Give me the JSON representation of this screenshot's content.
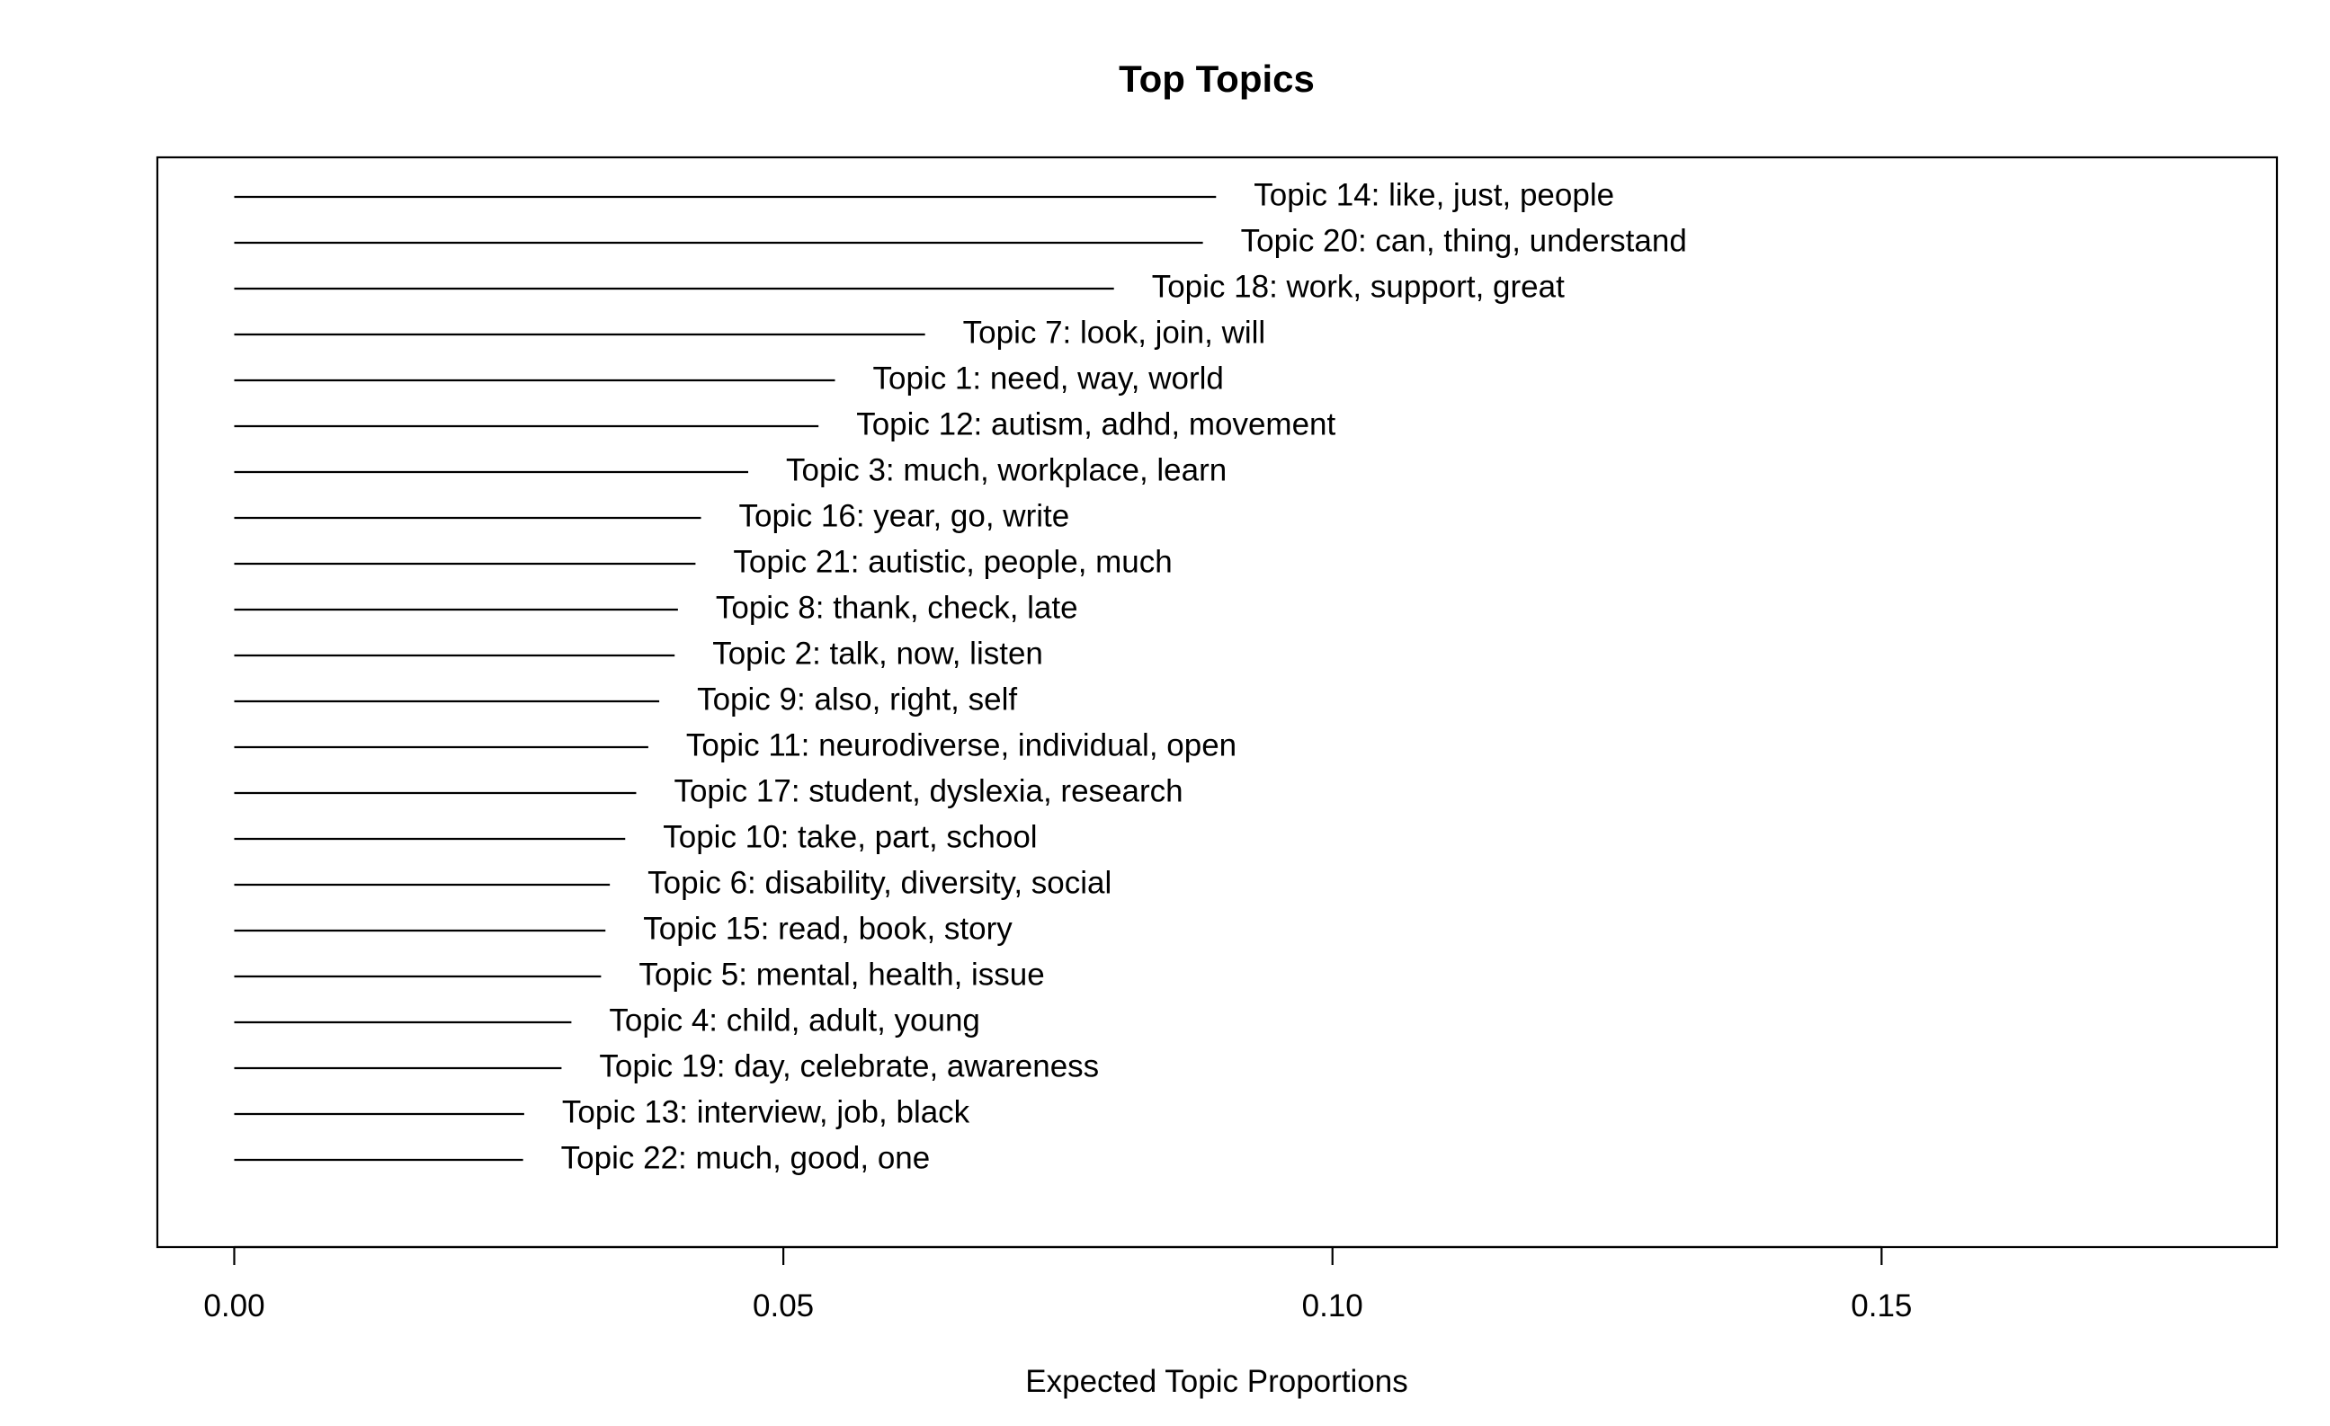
{
  "chart_data": {
    "type": "bar",
    "title": "Top Topics",
    "xlabel": "Expected Topic Proportions",
    "ylabel": "",
    "xlim": [
      -0.007,
      0.186
    ],
    "xticks": [
      0.0,
      0.05,
      0.1,
      0.15
    ],
    "xtick_labels": [
      "0.00",
      "0.05",
      "0.10",
      "0.15"
    ],
    "grid": false,
    "orientation": "horizontal",
    "colors": {
      "line": "#000000",
      "text": "#000000",
      "background": "#ffffff"
    },
    "categories": [
      "Topic 14: like, just, people",
      "Topic 20: can, thing, understand",
      "Topic 18: work, support, great",
      "Topic 7: look, join, will",
      "Topic 1: need, way, world",
      "Topic 12: autism, adhd, movement",
      "Topic 3: much, workplace, learn",
      "Topic 16: year, go, write",
      "Topic 21: autistic, people, much",
      "Topic 8: thank, check, late",
      "Topic 2: talk, now, listen",
      "Topic 9: also, right, self",
      "Topic 11: neurodiverse, individual, open",
      "Topic 17: student, dyslexia, research",
      "Topic 10: take, part, school",
      "Topic 6: disability, diversity, social",
      "Topic 15: read, book, story",
      "Topic 5: mental, health, issue",
      "Topic 4: child, adult, young",
      "Topic 19: day, celebrate, awareness",
      "Topic 13: interview, job, black",
      "Topic 22: much, good, one"
    ],
    "values": [
      0.0894,
      0.0882,
      0.0801,
      0.0629,
      0.0547,
      0.0532,
      0.0468,
      0.0425,
      0.042,
      0.0404,
      0.0401,
      0.0387,
      0.0377,
      0.0366,
      0.0356,
      0.0342,
      0.0338,
      0.0334,
      0.0307,
      0.0298,
      0.0264,
      0.0263
    ]
  }
}
